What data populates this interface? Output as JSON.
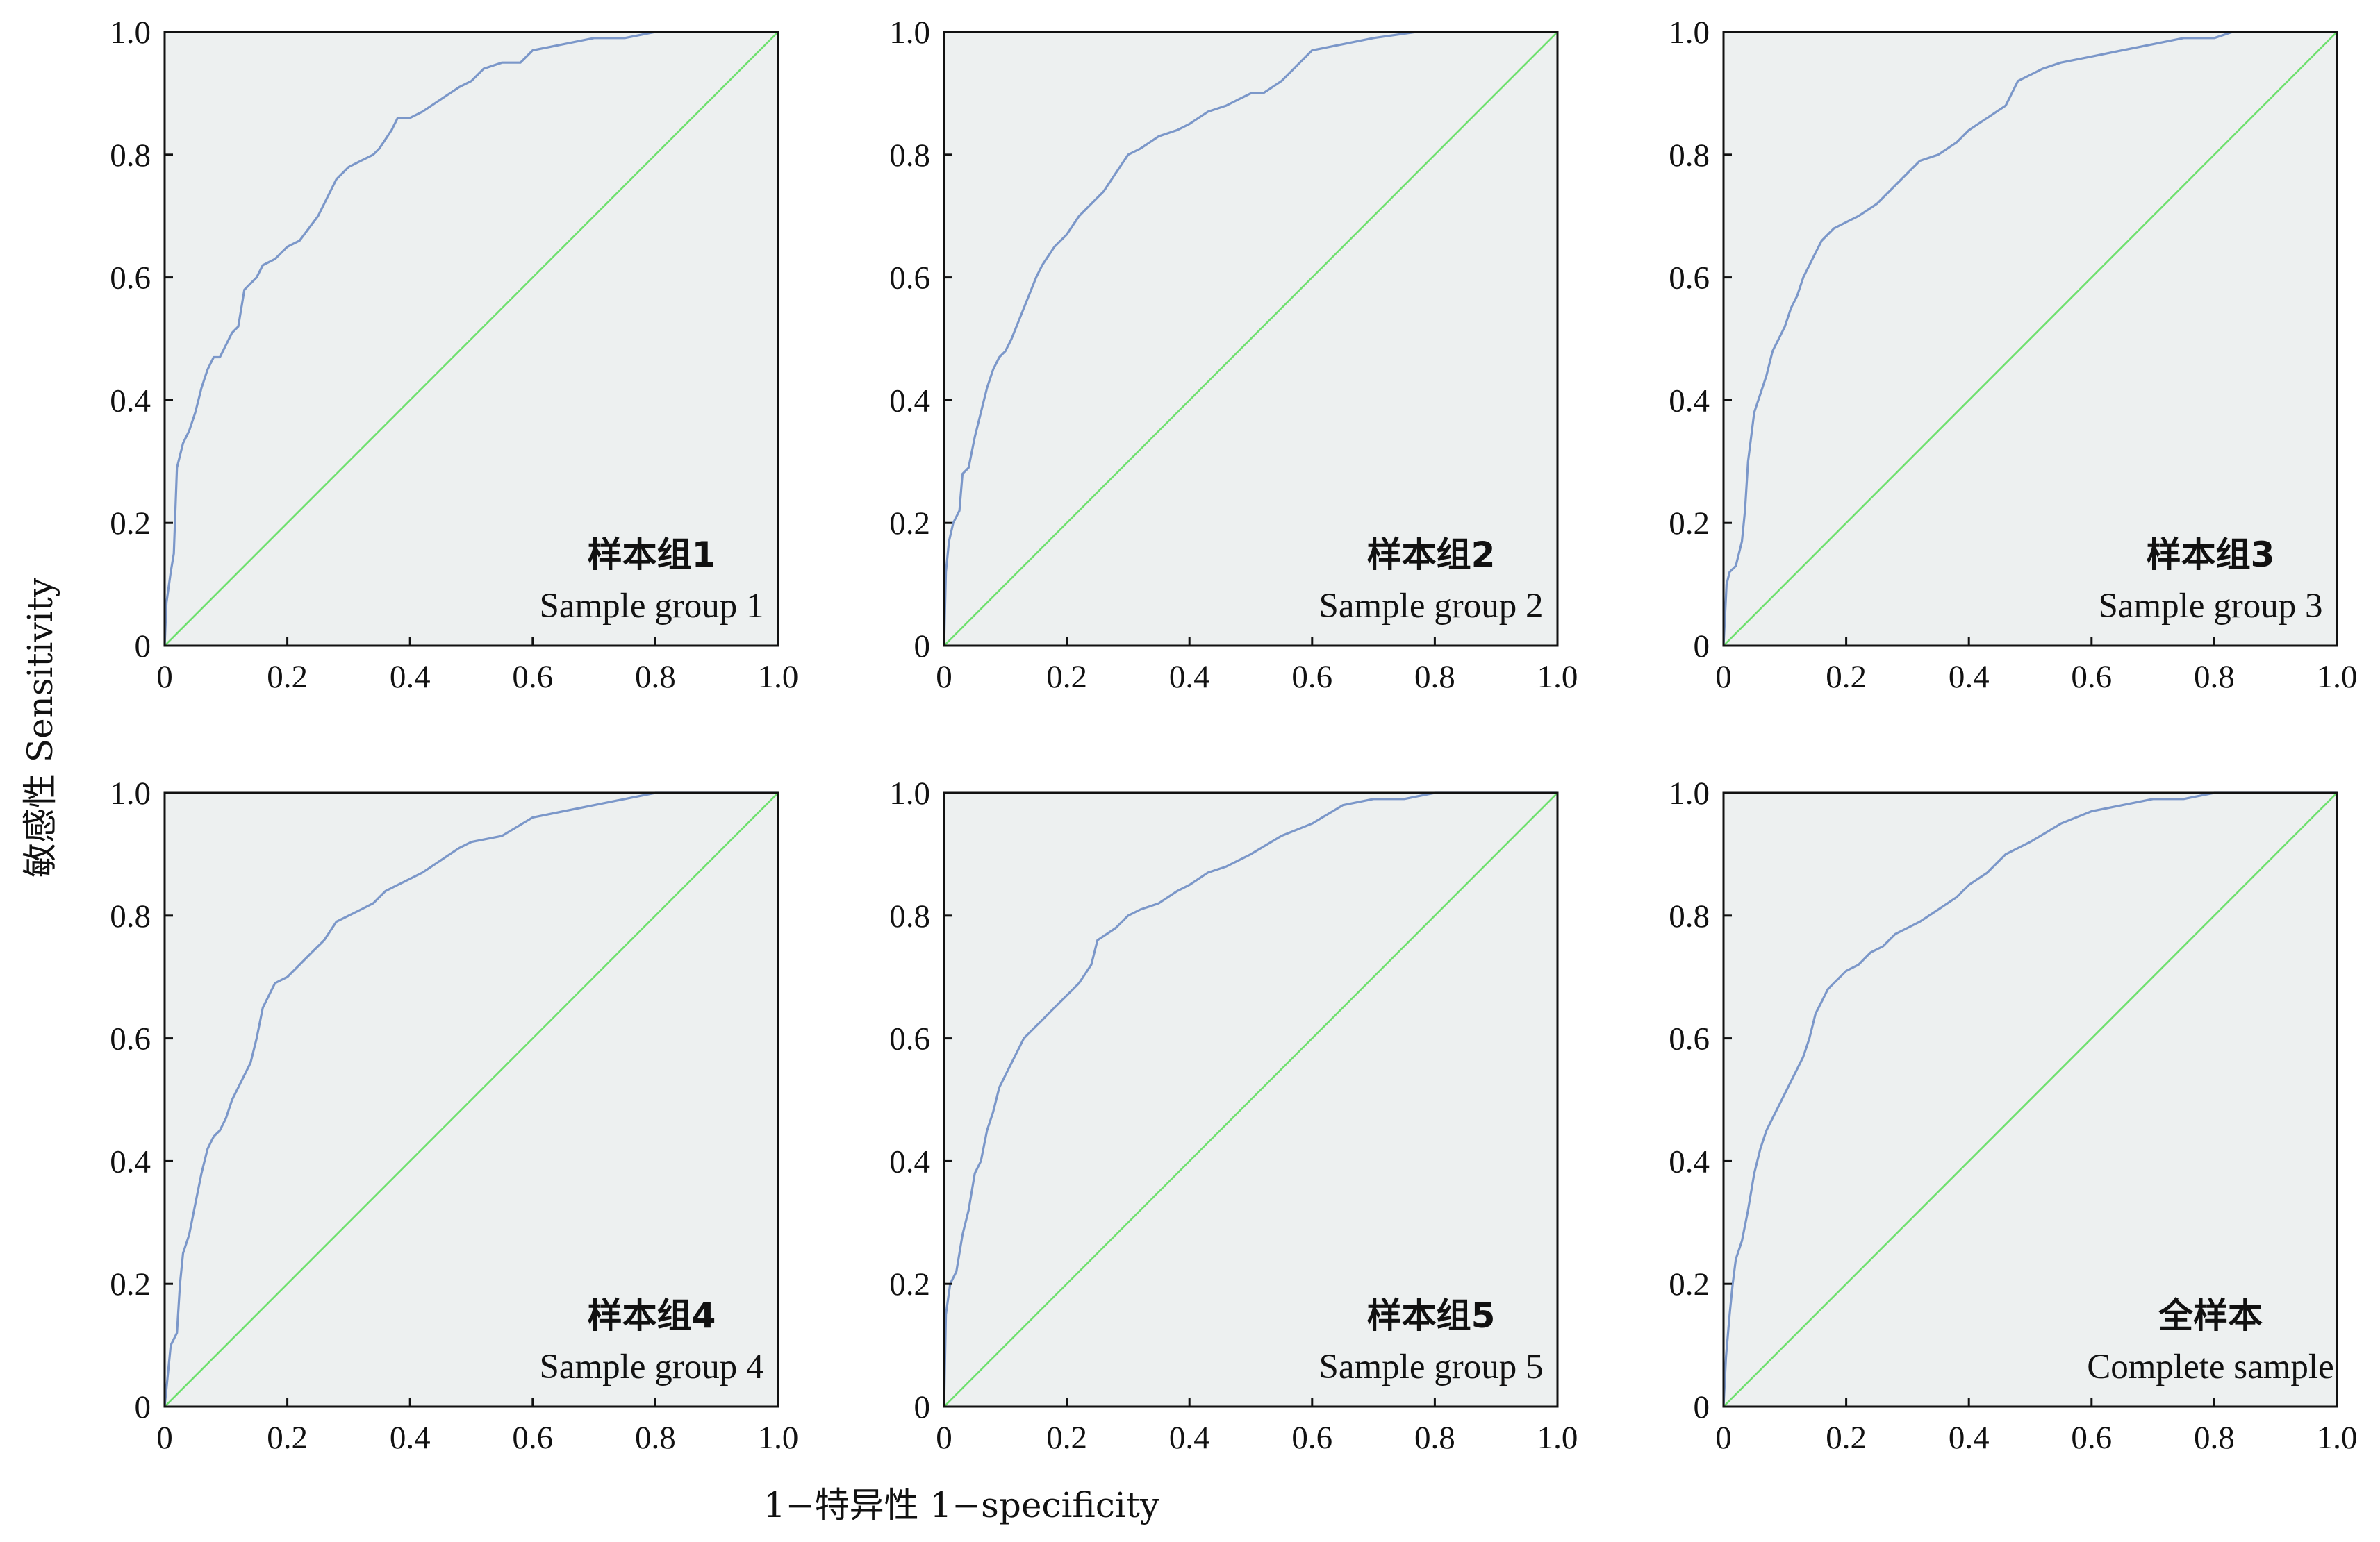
{
  "figure": {
    "ylabel": "敏感性 Sensitivity",
    "xlabel": "1−特异性 1−specificity"
  },
  "chart_data": [
    {
      "type": "line",
      "label_cn": "样本组1",
      "label_en": "Sample group 1",
      "xlim": [
        0,
        1
      ],
      "ylim": [
        0,
        1
      ],
      "xticks": [
        "0",
        "0.2",
        "0.4",
        "0.6",
        "0.8",
        "1.0"
      ],
      "yticks": [
        "0",
        "0.2",
        "0.4",
        "0.6",
        "0.8",
        "1.0"
      ],
      "series": [
        {
          "name": "ROC",
          "x": [
            0,
            0.003,
            0.01,
            0.015,
            0.02,
            0.025,
            0.03,
            0.04,
            0.05,
            0.055,
            0.06,
            0.07,
            0.08,
            0.09,
            0.1,
            0.11,
            0.12,
            0.13,
            0.14,
            0.15,
            0.16,
            0.18,
            0.2,
            0.22,
            0.25,
            0.28,
            0.3,
            0.32,
            0.34,
            0.35,
            0.37,
            0.38,
            0.4,
            0.42,
            0.45,
            0.48,
            0.5,
            0.52,
            0.55,
            0.58,
            0.6,
            0.65,
            0.7,
            0.75,
            0.8,
            0.82,
            1.0
          ],
          "y": [
            0,
            0.07,
            0.12,
            0.15,
            0.29,
            0.31,
            0.33,
            0.35,
            0.38,
            0.4,
            0.42,
            0.45,
            0.47,
            0.47,
            0.49,
            0.51,
            0.52,
            0.58,
            0.59,
            0.6,
            0.62,
            0.63,
            0.65,
            0.66,
            0.7,
            0.76,
            0.78,
            0.79,
            0.8,
            0.81,
            0.84,
            0.86,
            0.86,
            0.87,
            0.89,
            0.91,
            0.92,
            0.94,
            0.95,
            0.95,
            0.97,
            0.98,
            0.99,
            0.99,
            1.0,
            1.0,
            1.0
          ]
        },
        {
          "name": "Reference",
          "x": [
            0,
            1
          ],
          "y": [
            0,
            1
          ]
        }
      ]
    },
    {
      "type": "line",
      "label_cn": "样本组2",
      "label_en": "Sample group 2",
      "xlim": [
        0,
        1
      ],
      "ylim": [
        0,
        1
      ],
      "xticks": [
        "0",
        "0.2",
        "0.4",
        "0.6",
        "0.8",
        "1.0"
      ],
      "yticks": [
        "0",
        "0.2",
        "0.4",
        "0.6",
        "0.8",
        "1.0"
      ],
      "series": [
        {
          "name": "ROC",
          "x": [
            0,
            0.003,
            0.008,
            0.015,
            0.025,
            0.03,
            0.04,
            0.05,
            0.06,
            0.065,
            0.07,
            0.08,
            0.09,
            0.1,
            0.11,
            0.13,
            0.15,
            0.16,
            0.18,
            0.2,
            0.22,
            0.24,
            0.26,
            0.28,
            0.3,
            0.32,
            0.35,
            0.38,
            0.4,
            0.43,
            0.46,
            0.48,
            0.5,
            0.52,
            0.55,
            0.58,
            0.6,
            0.65,
            0.7,
            0.77,
            1.0
          ],
          "y": [
            0,
            0.12,
            0.17,
            0.2,
            0.22,
            0.28,
            0.29,
            0.34,
            0.38,
            0.4,
            0.42,
            0.45,
            0.47,
            0.48,
            0.5,
            0.55,
            0.6,
            0.62,
            0.65,
            0.67,
            0.7,
            0.72,
            0.74,
            0.77,
            0.8,
            0.81,
            0.83,
            0.84,
            0.85,
            0.87,
            0.88,
            0.89,
            0.9,
            0.9,
            0.92,
            0.95,
            0.97,
            0.98,
            0.99,
            1.0,
            1.0
          ]
        },
        {
          "name": "Reference",
          "x": [
            0,
            1
          ],
          "y": [
            0,
            1
          ]
        }
      ]
    },
    {
      "type": "line",
      "label_cn": "样本组3",
      "label_en": "Sample group 3",
      "xlim": [
        0,
        1
      ],
      "ylim": [
        0,
        1
      ],
      "xticks": [
        "0",
        "0.2",
        "0.4",
        "0.6",
        "0.8",
        "1.0"
      ],
      "yticks": [
        "0",
        "0.2",
        "0.4",
        "0.6",
        "0.8",
        "1.0"
      ],
      "series": [
        {
          "name": "ROC",
          "x": [
            0,
            0.005,
            0.01,
            0.02,
            0.03,
            0.035,
            0.04,
            0.05,
            0.06,
            0.07,
            0.08,
            0.09,
            0.1,
            0.11,
            0.12,
            0.13,
            0.14,
            0.15,
            0.16,
            0.18,
            0.2,
            0.22,
            0.25,
            0.28,
            0.3,
            0.32,
            0.35,
            0.38,
            0.4,
            0.43,
            0.46,
            0.48,
            0.5,
            0.52,
            0.55,
            0.6,
            0.65,
            0.7,
            0.75,
            0.8,
            0.83,
            1.0
          ],
          "y": [
            0,
            0.1,
            0.12,
            0.13,
            0.17,
            0.22,
            0.3,
            0.38,
            0.41,
            0.44,
            0.48,
            0.5,
            0.52,
            0.55,
            0.57,
            0.6,
            0.62,
            0.64,
            0.66,
            0.68,
            0.69,
            0.7,
            0.72,
            0.75,
            0.77,
            0.79,
            0.8,
            0.82,
            0.84,
            0.86,
            0.88,
            0.92,
            0.93,
            0.94,
            0.95,
            0.96,
            0.97,
            0.98,
            0.99,
            0.99,
            1.0,
            1.0
          ]
        },
        {
          "name": "Reference",
          "x": [
            0,
            1
          ],
          "y": [
            0,
            1
          ]
        }
      ]
    },
    {
      "type": "line",
      "label_cn": "样本组4",
      "label_en": "Sample group 4",
      "xlim": [
        0,
        1
      ],
      "ylim": [
        0,
        1
      ],
      "xticks": [
        "0",
        "0.2",
        "0.4",
        "0.6",
        "0.8",
        "1.0"
      ],
      "yticks": [
        "0",
        "0.2",
        "0.4",
        "0.6",
        "0.8",
        "1.0"
      ],
      "series": [
        {
          "name": "ROC",
          "x": [
            0,
            0.005,
            0.01,
            0.02,
            0.025,
            0.03,
            0.04,
            0.05,
            0.06,
            0.07,
            0.08,
            0.09,
            0.1,
            0.11,
            0.12,
            0.13,
            0.14,
            0.15,
            0.16,
            0.17,
            0.18,
            0.2,
            0.22,
            0.24,
            0.26,
            0.28,
            0.3,
            0.32,
            0.34,
            0.36,
            0.38,
            0.4,
            0.42,
            0.45,
            0.48,
            0.5,
            0.55,
            0.6,
            0.65,
            0.7,
            0.75,
            0.8,
            1.0
          ],
          "y": [
            0,
            0.05,
            0.1,
            0.12,
            0.2,
            0.25,
            0.28,
            0.33,
            0.38,
            0.42,
            0.44,
            0.45,
            0.47,
            0.5,
            0.52,
            0.54,
            0.56,
            0.6,
            0.65,
            0.67,
            0.69,
            0.7,
            0.72,
            0.74,
            0.76,
            0.79,
            0.8,
            0.81,
            0.82,
            0.84,
            0.85,
            0.86,
            0.87,
            0.89,
            0.91,
            0.92,
            0.93,
            0.96,
            0.97,
            0.98,
            0.99,
            1.0,
            1.0
          ]
        },
        {
          "name": "Reference",
          "x": [
            0,
            1
          ],
          "y": [
            0,
            1
          ]
        }
      ]
    },
    {
      "type": "line",
      "label_cn": "样本组5",
      "label_en": "Sample group 5",
      "xlim": [
        0,
        1
      ],
      "ylim": [
        0,
        1
      ],
      "xticks": [
        "0",
        "0.2",
        "0.4",
        "0.6",
        "0.8",
        "1.0"
      ],
      "yticks": [
        "0",
        "0.2",
        "0.4",
        "0.6",
        "0.8",
        "1.0"
      ],
      "series": [
        {
          "name": "ROC",
          "x": [
            0,
            0.003,
            0.01,
            0.02,
            0.03,
            0.04,
            0.05,
            0.06,
            0.07,
            0.08,
            0.09,
            0.1,
            0.11,
            0.12,
            0.13,
            0.14,
            0.15,
            0.16,
            0.18,
            0.2,
            0.22,
            0.24,
            0.25,
            0.28,
            0.3,
            0.32,
            0.35,
            0.38,
            0.4,
            0.43,
            0.46,
            0.5,
            0.55,
            0.6,
            0.65,
            0.7,
            0.75,
            0.8,
            1.0
          ],
          "y": [
            0,
            0.15,
            0.2,
            0.22,
            0.28,
            0.32,
            0.38,
            0.4,
            0.45,
            0.48,
            0.52,
            0.54,
            0.56,
            0.58,
            0.6,
            0.61,
            0.62,
            0.63,
            0.65,
            0.67,
            0.69,
            0.72,
            0.76,
            0.78,
            0.8,
            0.81,
            0.82,
            0.84,
            0.85,
            0.87,
            0.88,
            0.9,
            0.93,
            0.95,
            0.98,
            0.99,
            0.99,
            1.0,
            1.0
          ]
        },
        {
          "name": "Reference",
          "x": [
            0,
            1
          ],
          "y": [
            0,
            1
          ]
        }
      ]
    },
    {
      "type": "line",
      "label_cn": "全样本",
      "label_en": "Complete sample",
      "xlim": [
        0,
        1
      ],
      "ylim": [
        0,
        1
      ],
      "xticks": [
        "0",
        "0.2",
        "0.4",
        "0.6",
        "0.8",
        "1.0"
      ],
      "yticks": [
        "0",
        "0.2",
        "0.4",
        "0.6",
        "0.8",
        "1.0"
      ],
      "series": [
        {
          "name": "ROC",
          "x": [
            0,
            0.004,
            0.01,
            0.015,
            0.02,
            0.03,
            0.04,
            0.05,
            0.06,
            0.07,
            0.08,
            0.09,
            0.1,
            0.11,
            0.12,
            0.13,
            0.14,
            0.15,
            0.16,
            0.17,
            0.18,
            0.2,
            0.22,
            0.24,
            0.26,
            0.28,
            0.3,
            0.32,
            0.35,
            0.38,
            0.4,
            0.43,
            0.46,
            0.5,
            0.55,
            0.6,
            0.65,
            0.7,
            0.75,
            0.8,
            1.0
          ],
          "y": [
            0,
            0.08,
            0.15,
            0.2,
            0.24,
            0.27,
            0.32,
            0.38,
            0.42,
            0.45,
            0.47,
            0.49,
            0.51,
            0.53,
            0.55,
            0.57,
            0.6,
            0.64,
            0.66,
            0.68,
            0.69,
            0.71,
            0.72,
            0.74,
            0.75,
            0.77,
            0.78,
            0.79,
            0.81,
            0.83,
            0.85,
            0.87,
            0.9,
            0.92,
            0.95,
            0.97,
            0.98,
            0.99,
            0.99,
            1.0,
            1.0
          ]
        },
        {
          "name": "Reference",
          "x": [
            0,
            1
          ],
          "y": [
            0,
            1
          ]
        }
      ]
    }
  ]
}
